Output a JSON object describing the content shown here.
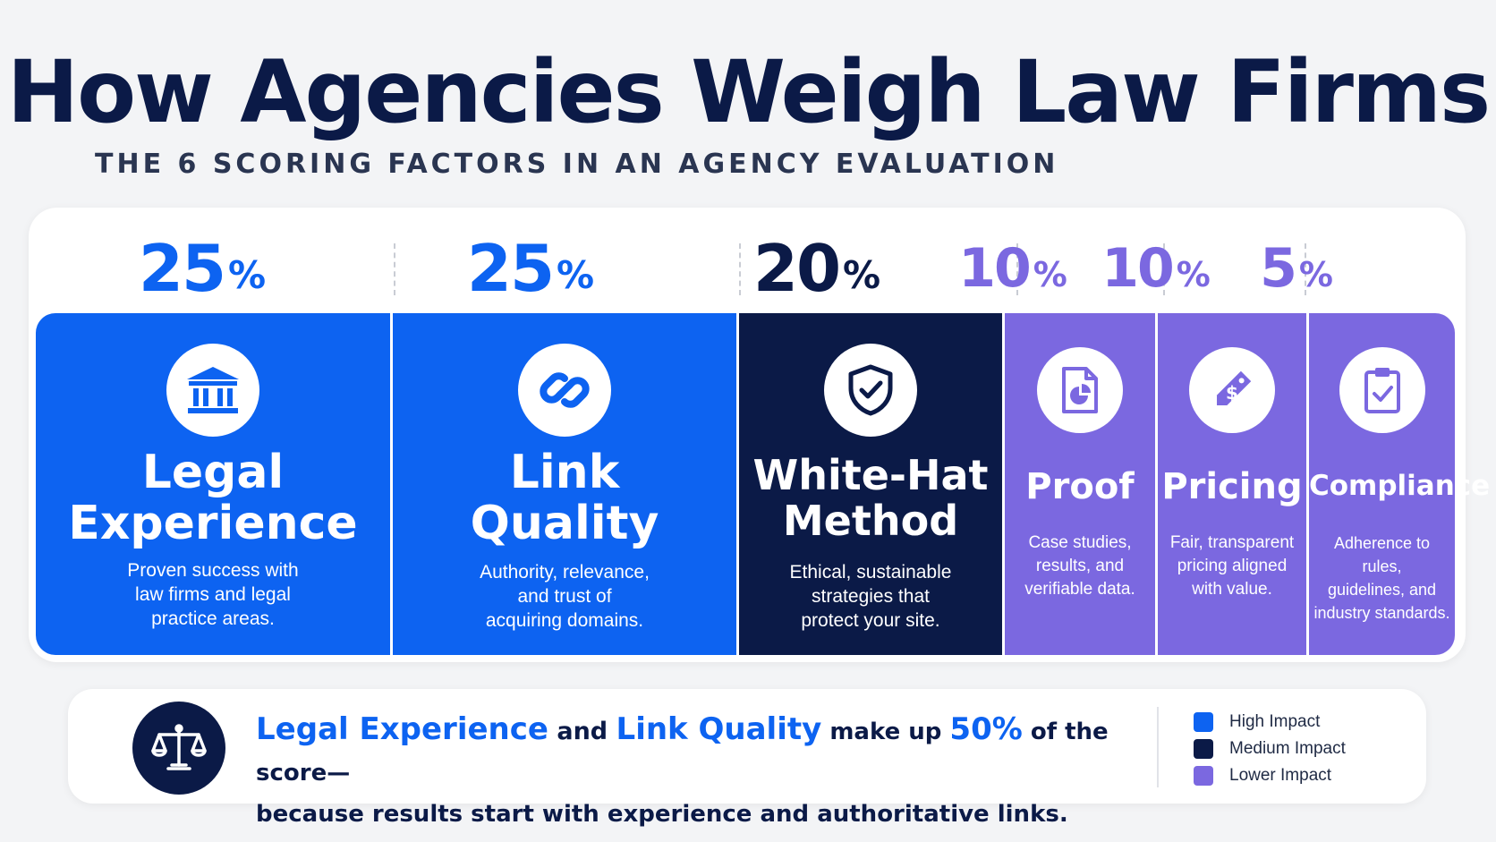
{
  "header": {
    "title": "How Agencies Weigh Law Firms",
    "subtitle": "THE 6 SCORING FACTORS IN AN AGENCY EVALUATION"
  },
  "colors": {
    "high": "#0d63f1",
    "medium": "#0b1a47",
    "lower": "#7b68e0"
  },
  "factors": [
    {
      "percent": "25",
      "sign": "%",
      "title_line1": "Legal",
      "title_line2": "Experience",
      "description": [
        "Proven success with",
        "law firms and legal",
        "practice areas."
      ],
      "icon": "courthouse-icon",
      "impact": "high"
    },
    {
      "percent": "25",
      "sign": "%",
      "title_line1": "Link",
      "title_line2": "Quality",
      "description": [
        "Authority, relevance,",
        "and trust of",
        "acquiring domains."
      ],
      "icon": "link-icon",
      "impact": "high"
    },
    {
      "percent": "20",
      "sign": "%",
      "title_line1": "White-Hat",
      "title_line2": "Method",
      "description": [
        "Ethical, sustainable",
        "strategies that",
        "protect your site."
      ],
      "icon": "shield-check-icon",
      "impact": "medium"
    },
    {
      "percent": "10",
      "sign": "%",
      "title_line1": "Proof",
      "title_line2": "",
      "description": [
        "Case studies,",
        "results, and",
        "verifiable data."
      ],
      "icon": "document-chart-icon",
      "impact": "lower"
    },
    {
      "percent": "10",
      "sign": "%",
      "title_line1": "Pricing",
      "title_line2": "",
      "description": [
        "Fair, transparent",
        "pricing aligned",
        "with value."
      ],
      "icon": "price-tag-icon",
      "impact": "lower"
    },
    {
      "percent": "5",
      "sign": "%",
      "title_line1": "Compliance",
      "title_line2": "",
      "description": [
        "Adherence to rules,",
        "guidelines, and",
        "industry standards."
      ],
      "icon": "clipboard-check-icon",
      "impact": "lower"
    }
  ],
  "summary": {
    "hl1": "Legal Experience",
    "t1": " and ",
    "hl2": "Link Quality",
    "t2": " make up ",
    "hl3": "50%",
    "t3": " of the score—",
    "line2": "because results start with experience and authoritative links.",
    "icon": "scales-of-justice-icon"
  },
  "legend": [
    {
      "label": "High Impact",
      "color": "#0d63f1"
    },
    {
      "label": "Medium Impact",
      "color": "#0b1a47"
    },
    {
      "label": "Lower Impact",
      "color": "#7b68e0"
    }
  ]
}
